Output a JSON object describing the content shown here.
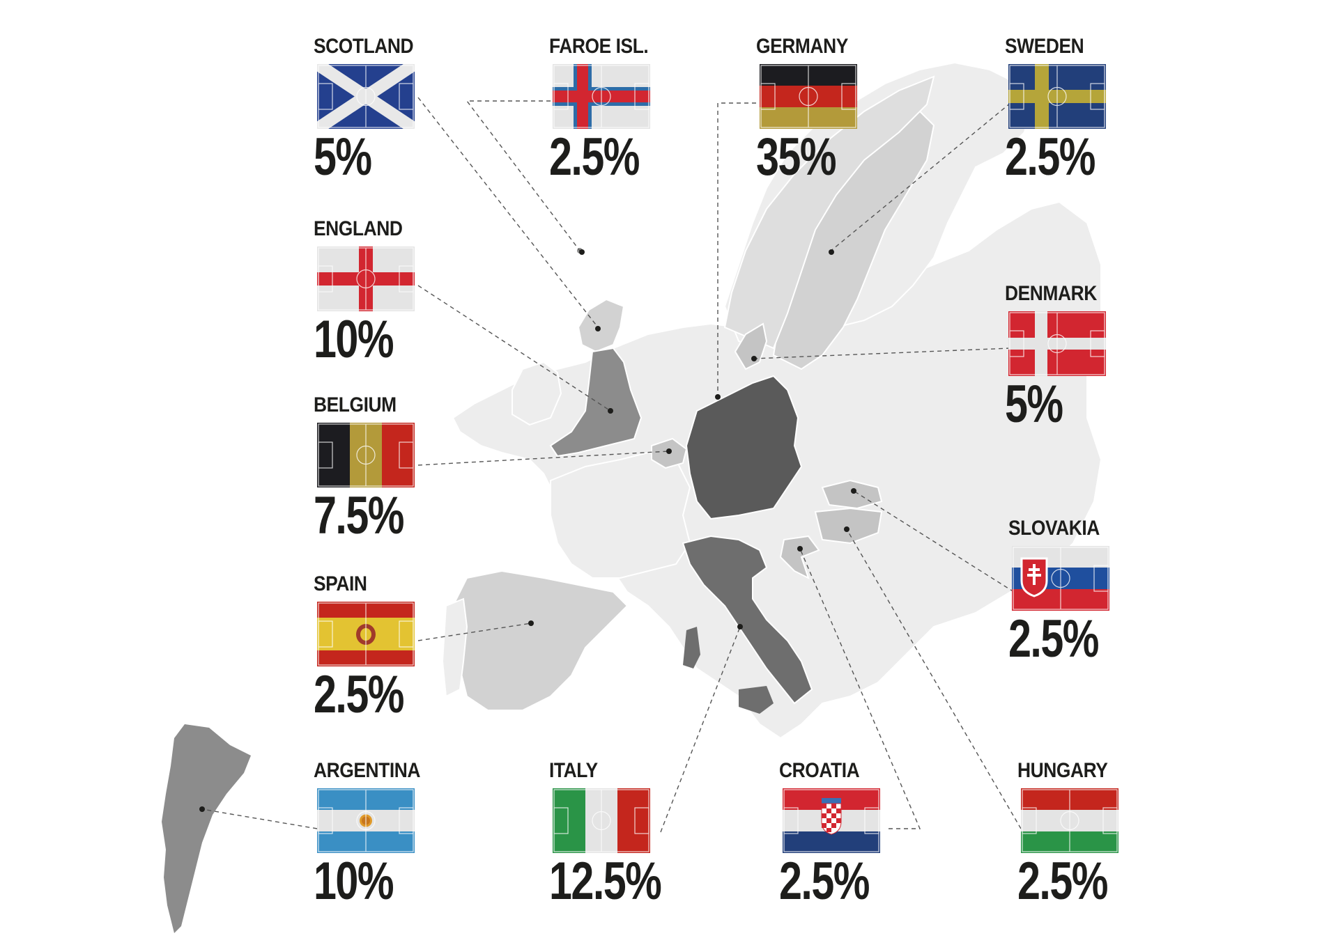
{
  "colors": {
    "background": "#ffffff",
    "map_land_light": "#ededed",
    "map_land_mid": "#d2d2d2",
    "map_land_dark": "#8c8c8c",
    "map_land_darkest": "#5a5a5a",
    "text": "#1d1d1b",
    "leader_line": "#555555"
  },
  "countries": [
    {
      "id": "scotland",
      "name": "SCOTLAND",
      "share": "5%",
      "share_pct": 5,
      "flag": "scotland-flag-pitch"
    },
    {
      "id": "faroe",
      "name": "FAROE ISL.",
      "share": "2.5%",
      "share_pct": 2.5,
      "flag": "faroe-flag-pitch"
    },
    {
      "id": "germany",
      "name": "GERMANY",
      "share": "35%",
      "share_pct": 35,
      "flag": "germany-flag-pitch"
    },
    {
      "id": "sweden",
      "name": "SWEDEN",
      "share": "2.5%",
      "share_pct": 2.5,
      "flag": "sweden-flag-pitch"
    },
    {
      "id": "england",
      "name": "ENGLAND",
      "share": "10%",
      "share_pct": 10,
      "flag": "england-flag-pitch"
    },
    {
      "id": "denmark",
      "name": "DENMARK",
      "share": "5%",
      "share_pct": 5,
      "flag": "denmark-flag-pitch"
    },
    {
      "id": "belgium",
      "name": "BELGIUM",
      "share": "7.5%",
      "share_pct": 7.5,
      "flag": "belgium-flag-pitch"
    },
    {
      "id": "slovakia",
      "name": "SLOVAKIA",
      "share": "2.5%",
      "share_pct": 2.5,
      "flag": "slovakia-flag-pitch"
    },
    {
      "id": "spain",
      "name": "SPAIN",
      "share": "2.5%",
      "share_pct": 2.5,
      "flag": "spain-flag-pitch"
    },
    {
      "id": "argentina",
      "name": "ARGENTINA",
      "share": "10%",
      "share_pct": 10,
      "flag": "argentina-flag-pitch"
    },
    {
      "id": "italy",
      "name": "ITALY",
      "share": "12.5%",
      "share_pct": 12.5,
      "flag": "italy-flag-pitch"
    },
    {
      "id": "croatia",
      "name": "CROATIA",
      "share": "2.5%",
      "share_pct": 2.5,
      "flag": "croatia-flag-pitch"
    },
    {
      "id": "hungary",
      "name": "HUNGARY",
      "share": "2.5%",
      "share_pct": 2.5,
      "flag": "hungary-flag-pitch"
    }
  ]
}
